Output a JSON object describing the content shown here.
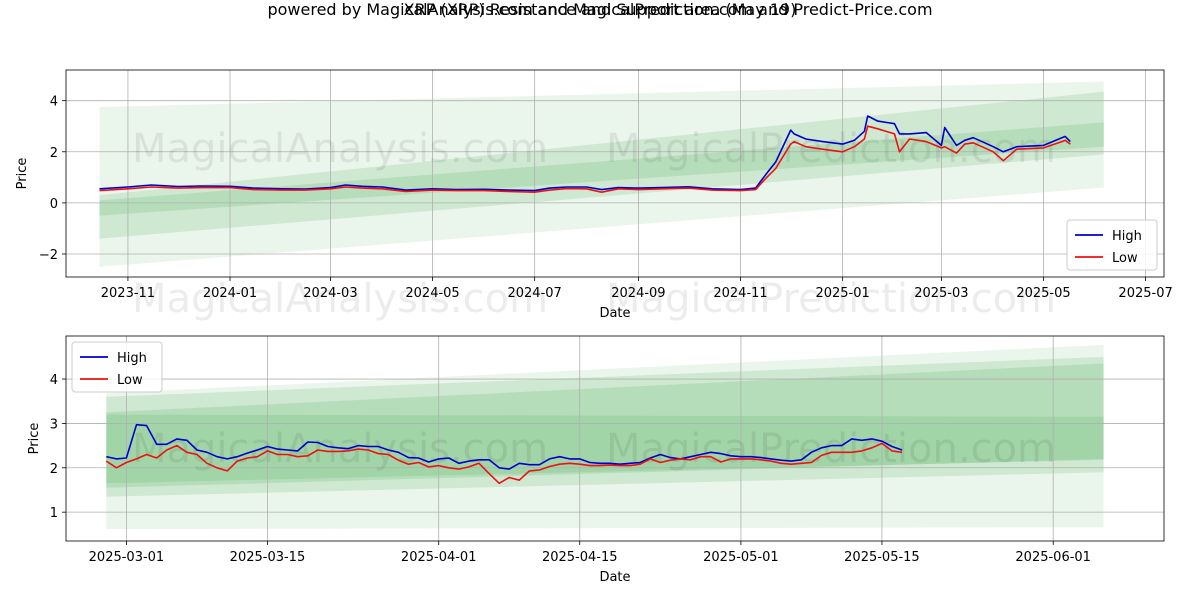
{
  "title": "XRP (XRP) Resistance and Support area (May 19)",
  "subtitle": "powered by MagicalAnalysis.com and MagicalPrediction.com and Predict-Price.com",
  "watermarks": [
    "MagicalAnalysis.com",
    "MagicalPrediction.com"
  ],
  "colors": {
    "high": "#0000cc",
    "low": "#ee1111",
    "band": "#2e9e3e",
    "grid": "#b0b0b0"
  },
  "chart_data": [
    {
      "type": "line",
      "xlabel": "Date",
      "ylabel": "Price",
      "xlim": [
        "2023-09-25",
        "2025-07-12"
      ],
      "ylim": [
        -2.9,
        5.2
      ],
      "grid": true,
      "legend_position": "lower-right",
      "xticks": [
        "2023-11",
        "2024-01",
        "2024-03",
        "2024-05",
        "2024-07",
        "2024-09",
        "2024-11",
        "2025-01",
        "2025-03",
        "2025-05",
        "2025-07"
      ],
      "yticks": [
        -2,
        0,
        2,
        4
      ],
      "bands": [
        {
          "from": "2023-10-15",
          "to": "2025-06-06",
          "lower": [
            -2.5,
            0.6
          ],
          "upper": [
            3.75,
            4.75
          ],
          "opacity": 0.1
        },
        {
          "from": "2023-10-15",
          "to": "2025-06-06",
          "lower": [
            -1.4,
            1.9
          ],
          "upper": [
            0.3,
            4.35
          ],
          "opacity": 0.15
        },
        {
          "from": "2023-10-15",
          "to": "2025-06-06",
          "lower": [
            -0.5,
            2.2
          ],
          "upper": [
            0.1,
            3.15
          ],
          "opacity": 0.15
        }
      ],
      "series": [
        {
          "name": "High",
          "dates": [
            "2023-10-15",
            "2023-11-01",
            "2023-11-15",
            "2023-12-01",
            "2023-12-15",
            "2024-01-01",
            "2024-01-15",
            "2024-02-01",
            "2024-02-15",
            "2024-03-01",
            "2024-03-10",
            "2024-03-20",
            "2024-04-01",
            "2024-04-15",
            "2024-05-01",
            "2024-05-15",
            "2024-06-01",
            "2024-06-15",
            "2024-07-01",
            "2024-07-10",
            "2024-07-20",
            "2024-08-01",
            "2024-08-10",
            "2024-08-20",
            "2024-09-01",
            "2024-09-15",
            "2024-10-01",
            "2024-10-15",
            "2024-11-01",
            "2024-11-10",
            "2024-11-16",
            "2024-11-22",
            "2024-12-01",
            "2024-12-03",
            "2024-12-10",
            "2024-12-20",
            "2025-01-01",
            "2025-01-08",
            "2025-01-14",
            "2025-01-16",
            "2025-01-22",
            "2025-02-01",
            "2025-02-04",
            "2025-02-10",
            "2025-02-20",
            "2025-03-01",
            "2025-03-03",
            "2025-03-10",
            "2025-03-15",
            "2025-03-20",
            "2025-04-01",
            "2025-04-07",
            "2025-04-15",
            "2025-05-01",
            "2025-05-12",
            "2025-05-14",
            "2025-05-17"
          ],
          "values": [
            0.55,
            0.62,
            0.7,
            0.64,
            0.66,
            0.65,
            0.58,
            0.55,
            0.54,
            0.6,
            0.7,
            0.65,
            0.62,
            0.5,
            0.55,
            0.52,
            0.53,
            0.5,
            0.48,
            0.58,
            0.62,
            0.62,
            0.52,
            0.6,
            0.58,
            0.6,
            0.63,
            0.55,
            0.52,
            0.58,
            1.1,
            1.6,
            2.85,
            2.7,
            2.5,
            2.4,
            2.3,
            2.45,
            2.8,
            3.4,
            3.2,
            3.1,
            2.7,
            2.7,
            2.75,
            2.25,
            2.95,
            2.25,
            2.45,
            2.55,
            2.2,
            2.0,
            2.2,
            2.25,
            2.55,
            2.6,
            2.4
          ]
        },
        {
          "name": "Low",
          "dates": [
            "2023-10-15",
            "2023-11-01",
            "2023-11-15",
            "2023-12-01",
            "2023-12-15",
            "2024-01-01",
            "2024-01-15",
            "2024-02-01",
            "2024-02-15",
            "2024-03-01",
            "2024-03-10",
            "2024-03-20",
            "2024-04-01",
            "2024-04-15",
            "2024-05-01",
            "2024-05-15",
            "2024-06-01",
            "2024-06-15",
            "2024-07-01",
            "2024-07-10",
            "2024-07-20",
            "2024-08-01",
            "2024-08-10",
            "2024-08-20",
            "2024-09-01",
            "2024-09-15",
            "2024-10-01",
            "2024-10-15",
            "2024-11-01",
            "2024-11-10",
            "2024-11-16",
            "2024-11-22",
            "2024-12-01",
            "2024-12-03",
            "2024-12-10",
            "2024-12-20",
            "2025-01-01",
            "2025-01-08",
            "2025-01-14",
            "2025-01-16",
            "2025-01-22",
            "2025-02-01",
            "2025-02-04",
            "2025-02-10",
            "2025-02-20",
            "2025-03-01",
            "2025-03-03",
            "2025-03-10",
            "2025-03-15",
            "2025-03-20",
            "2025-04-01",
            "2025-04-07",
            "2025-04-15",
            "2025-05-01",
            "2025-05-12",
            "2025-05-14",
            "2025-05-17"
          ],
          "values": [
            0.48,
            0.55,
            0.62,
            0.58,
            0.6,
            0.6,
            0.52,
            0.5,
            0.5,
            0.55,
            0.62,
            0.58,
            0.55,
            0.45,
            0.5,
            0.48,
            0.48,
            0.45,
            0.42,
            0.5,
            0.56,
            0.55,
            0.42,
            0.55,
            0.52,
            0.55,
            0.58,
            0.5,
            0.48,
            0.52,
            0.95,
            1.35,
            2.3,
            2.4,
            2.2,
            2.1,
            2.0,
            2.2,
            2.5,
            3.0,
            2.9,
            2.7,
            2.0,
            2.5,
            2.4,
            2.15,
            2.2,
            1.95,
            2.3,
            2.35,
            2.0,
            1.65,
            2.1,
            2.15,
            2.4,
            2.45,
            2.3
          ]
        }
      ]
    },
    {
      "type": "line",
      "xlabel": "Date",
      "ylabel": "Price",
      "xlim": [
        "2025-02-23",
        "2025-06-12"
      ],
      "ylim": [
        0.35,
        4.97
      ],
      "grid": true,
      "legend_position": "upper-left",
      "xticks": [
        "2025-03-01",
        "2025-03-15",
        "2025-04-01",
        "2025-04-15",
        "2025-05-01",
        "2025-05-15",
        "2025-06-01"
      ],
      "yticks": [
        1,
        2,
        3,
        4
      ],
      "bands": [
        {
          "from": "2025-02-27",
          "to": "2025-06-06",
          "lower": [
            0.62,
            0.66
          ],
          "upper": [
            3.68,
            4.77
          ],
          "opacity": 0.1
        },
        {
          "from": "2025-02-27",
          "to": "2025-06-06",
          "lower": [
            1.35,
            1.9
          ],
          "upper": [
            3.6,
            4.5
          ],
          "opacity": 0.15
        },
        {
          "from": "2025-02-27",
          "to": "2025-06-06",
          "lower": [
            1.55,
            2.2
          ],
          "upper": [
            3.25,
            4.35
          ],
          "opacity": 0.15
        },
        {
          "from": "2025-02-27",
          "to": "2025-06-06",
          "lower": [
            1.65,
            2.18
          ],
          "upper": [
            3.2,
            3.15
          ],
          "opacity": 0.15
        }
      ],
      "series": [
        {
          "name": "High",
          "dates": [
            "2025-02-27",
            "2025-02-28",
            "2025-03-01",
            "2025-03-02",
            "2025-03-03",
            "2025-03-04",
            "2025-03-05",
            "2025-03-06",
            "2025-03-07",
            "2025-03-08",
            "2025-03-09",
            "2025-03-10",
            "2025-03-11",
            "2025-03-12",
            "2025-03-13",
            "2025-03-14",
            "2025-03-15",
            "2025-03-16",
            "2025-03-17",
            "2025-03-18",
            "2025-03-19",
            "2025-03-20",
            "2025-03-21",
            "2025-03-22",
            "2025-03-23",
            "2025-03-24",
            "2025-03-25",
            "2025-03-26",
            "2025-03-27",
            "2025-03-28",
            "2025-03-29",
            "2025-03-30",
            "2025-03-31",
            "2025-04-01",
            "2025-04-02",
            "2025-04-03",
            "2025-04-04",
            "2025-04-05",
            "2025-04-06",
            "2025-04-07",
            "2025-04-08",
            "2025-04-09",
            "2025-04-10",
            "2025-04-11",
            "2025-04-12",
            "2025-04-13",
            "2025-04-14",
            "2025-04-15",
            "2025-04-16",
            "2025-04-17",
            "2025-04-18",
            "2025-04-19",
            "2025-04-20",
            "2025-04-21",
            "2025-04-22",
            "2025-04-23",
            "2025-04-24",
            "2025-04-25",
            "2025-04-26",
            "2025-04-27",
            "2025-04-28",
            "2025-04-29",
            "2025-04-30",
            "2025-05-01",
            "2025-05-02",
            "2025-05-03",
            "2025-05-04",
            "2025-05-05",
            "2025-05-06",
            "2025-05-07",
            "2025-05-08",
            "2025-05-09",
            "2025-05-10",
            "2025-05-11",
            "2025-05-12",
            "2025-05-13",
            "2025-05-14",
            "2025-05-15",
            "2025-05-16",
            "2025-05-17"
          ],
          "values": [
            2.25,
            2.2,
            2.22,
            2.97,
            2.95,
            2.53,
            2.53,
            2.65,
            2.62,
            2.4,
            2.35,
            2.25,
            2.2,
            2.25,
            2.33,
            2.4,
            2.48,
            2.42,
            2.4,
            2.38,
            2.58,
            2.57,
            2.48,
            2.45,
            2.43,
            2.5,
            2.48,
            2.48,
            2.4,
            2.35,
            2.23,
            2.22,
            2.13,
            2.2,
            2.22,
            2.1,
            2.15,
            2.18,
            2.18,
            2.0,
            1.97,
            2.1,
            2.07,
            2.07,
            2.2,
            2.25,
            2.2,
            2.2,
            2.12,
            2.1,
            2.1,
            2.08,
            2.1,
            2.12,
            2.22,
            2.3,
            2.23,
            2.2,
            2.25,
            2.3,
            2.35,
            2.32,
            2.27,
            2.25,
            2.25,
            2.23,
            2.2,
            2.17,
            2.15,
            2.18,
            2.35,
            2.45,
            2.5,
            2.5,
            2.65,
            2.62,
            2.65,
            2.6,
            2.48,
            2.4
          ]
        },
        {
          "name": "Low",
          "dates": [
            "2025-02-27",
            "2025-02-28",
            "2025-03-01",
            "2025-03-02",
            "2025-03-03",
            "2025-03-04",
            "2025-03-05",
            "2025-03-06",
            "2025-03-07",
            "2025-03-08",
            "2025-03-09",
            "2025-03-10",
            "2025-03-11",
            "2025-03-12",
            "2025-03-13",
            "2025-03-14",
            "2025-03-15",
            "2025-03-16",
            "2025-03-17",
            "2025-03-18",
            "2025-03-19",
            "2025-03-20",
            "2025-03-21",
            "2025-03-22",
            "2025-03-23",
            "2025-03-24",
            "2025-03-25",
            "2025-03-26",
            "2025-03-27",
            "2025-03-28",
            "2025-03-29",
            "2025-03-30",
            "2025-03-31",
            "2025-04-01",
            "2025-04-02",
            "2025-04-03",
            "2025-04-04",
            "2025-04-05",
            "2025-04-06",
            "2025-04-07",
            "2025-04-08",
            "2025-04-09",
            "2025-04-10",
            "2025-04-11",
            "2025-04-12",
            "2025-04-13",
            "2025-04-14",
            "2025-04-15",
            "2025-04-16",
            "2025-04-17",
            "2025-04-18",
            "2025-04-19",
            "2025-04-20",
            "2025-04-21",
            "2025-04-22",
            "2025-04-23",
            "2025-04-24",
            "2025-04-25",
            "2025-04-26",
            "2025-04-27",
            "2025-04-28",
            "2025-04-29",
            "2025-04-30",
            "2025-05-01",
            "2025-05-02",
            "2025-05-03",
            "2025-05-04",
            "2025-05-05",
            "2025-05-06",
            "2025-05-07",
            "2025-05-08",
            "2025-05-09",
            "2025-05-10",
            "2025-05-11",
            "2025-05-12",
            "2025-05-13",
            "2025-05-14",
            "2025-05-15",
            "2025-05-16",
            "2025-05-17"
          ],
          "values": [
            2.15,
            2.0,
            2.12,
            2.2,
            2.3,
            2.22,
            2.4,
            2.5,
            2.35,
            2.3,
            2.1,
            2.0,
            1.93,
            2.15,
            2.22,
            2.25,
            2.38,
            2.3,
            2.3,
            2.25,
            2.27,
            2.4,
            2.37,
            2.37,
            2.38,
            2.42,
            2.4,
            2.32,
            2.3,
            2.17,
            2.08,
            2.12,
            2.02,
            2.05,
            2.0,
            1.97,
            2.02,
            2.1,
            1.87,
            1.65,
            1.78,
            1.72,
            1.93,
            1.95,
            2.03,
            2.08,
            2.1,
            2.08,
            2.05,
            2.05,
            2.06,
            2.05,
            2.05,
            2.08,
            2.2,
            2.12,
            2.17,
            2.2,
            2.18,
            2.25,
            2.25,
            2.13,
            2.2,
            2.2,
            2.2,
            2.18,
            2.15,
            2.1,
            2.08,
            2.1,
            2.12,
            2.28,
            2.35,
            2.35,
            2.35,
            2.38,
            2.45,
            2.55,
            2.38,
            2.35
          ]
        }
      ]
    }
  ]
}
